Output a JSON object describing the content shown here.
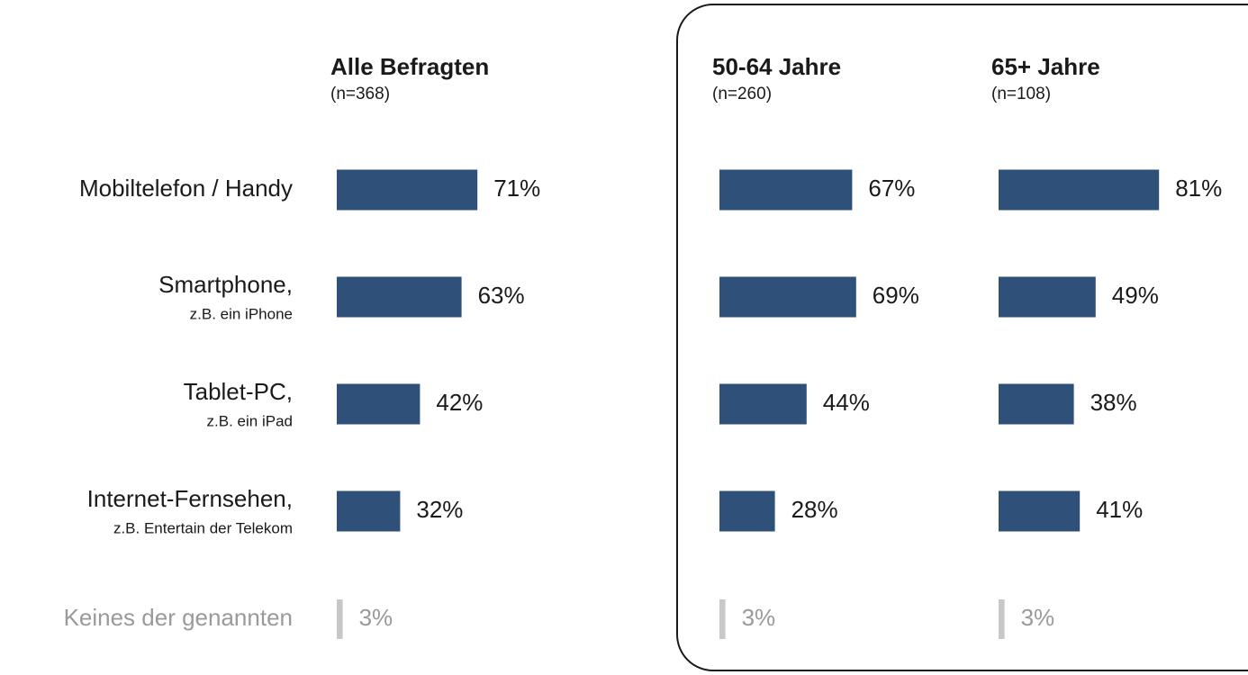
{
  "chart_data": {
    "type": "bar",
    "categories": [
      "Mobiltelefon / Handy",
      "Smartphone,",
      "Tablet-PC,",
      "Internet-Fernsehen,",
      "Keines der genannten"
    ],
    "category_notes": [
      null,
      "z.B. ein iPhone",
      "z.B. ein iPad",
      "z.B. Entertain der Telekom",
      null
    ],
    "bar_colors": [
      "#2f5078",
      "#2f5078",
      "#2f5078",
      "#2f5078",
      "#c8c8c8"
    ],
    "text_colors": [
      "#1a1a1a",
      "#1a1a1a",
      "#1a1a1a",
      "#1a1a1a",
      "#9a9a9a"
    ],
    "xlim": [
      0,
      100
    ],
    "series": [
      {
        "name": "Alle Befragten",
        "subtitle": "(n=368)",
        "values": [
          71,
          63,
          42,
          32,
          3
        ],
        "value_labels": [
          "71%",
          "63%",
          "42%",
          "32%",
          "3%"
        ]
      },
      {
        "name": "50-64 Jahre",
        "subtitle": "(n=260)",
        "values": [
          67,
          69,
          44,
          28,
          3
        ],
        "value_labels": [
          "67%",
          "69%",
          "44%",
          "28%",
          "3%"
        ]
      },
      {
        "name": "65+ Jahre",
        "subtitle": "(n=108)",
        "values": [
          81,
          49,
          38,
          41,
          3
        ],
        "value_labels": [
          "81%",
          "49%",
          "38%",
          "41%",
          "3%"
        ]
      }
    ]
  }
}
